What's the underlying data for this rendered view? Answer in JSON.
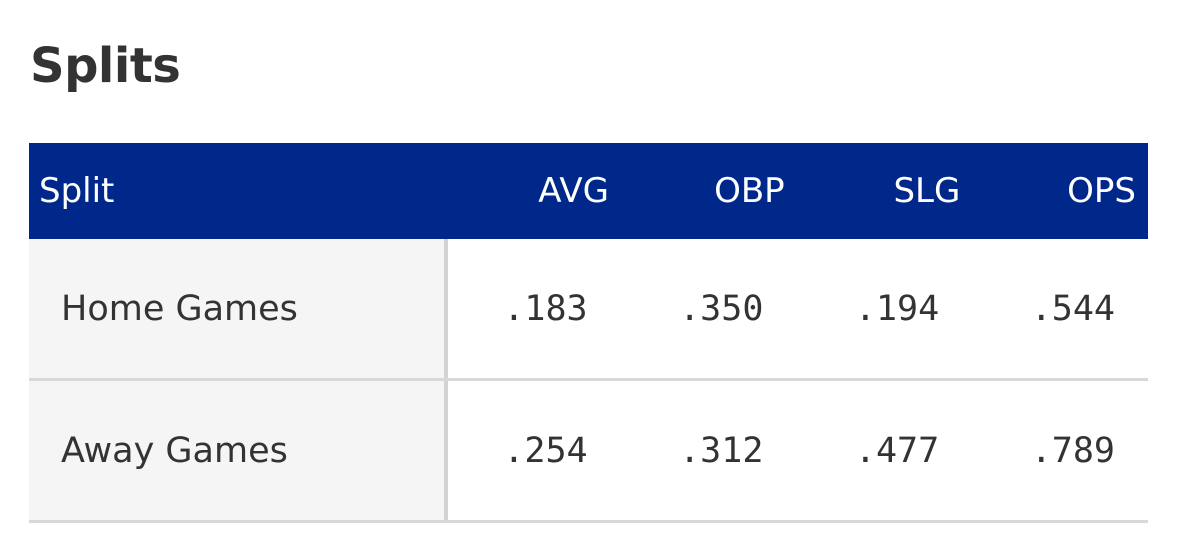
{
  "section": {
    "title": "Splits"
  },
  "table": {
    "columns": [
      "Split",
      "AVG",
      "OBP",
      "SLG",
      "OPS"
    ],
    "rows": [
      {
        "split": "Home Games",
        "avg": ".183",
        "obp": ".350",
        "slg": ".194",
        "ops": ".544"
      },
      {
        "split": "Away Games",
        "avg": ".254",
        "obp": ".312",
        "slg": ".477",
        "ops": ".789"
      }
    ]
  },
  "colors": {
    "header_bg": "#00288a",
    "header_text": "#ffffff",
    "label_cell_bg": "#f5f5f5",
    "text": "#333333",
    "divider": "#d8d8d8"
  }
}
